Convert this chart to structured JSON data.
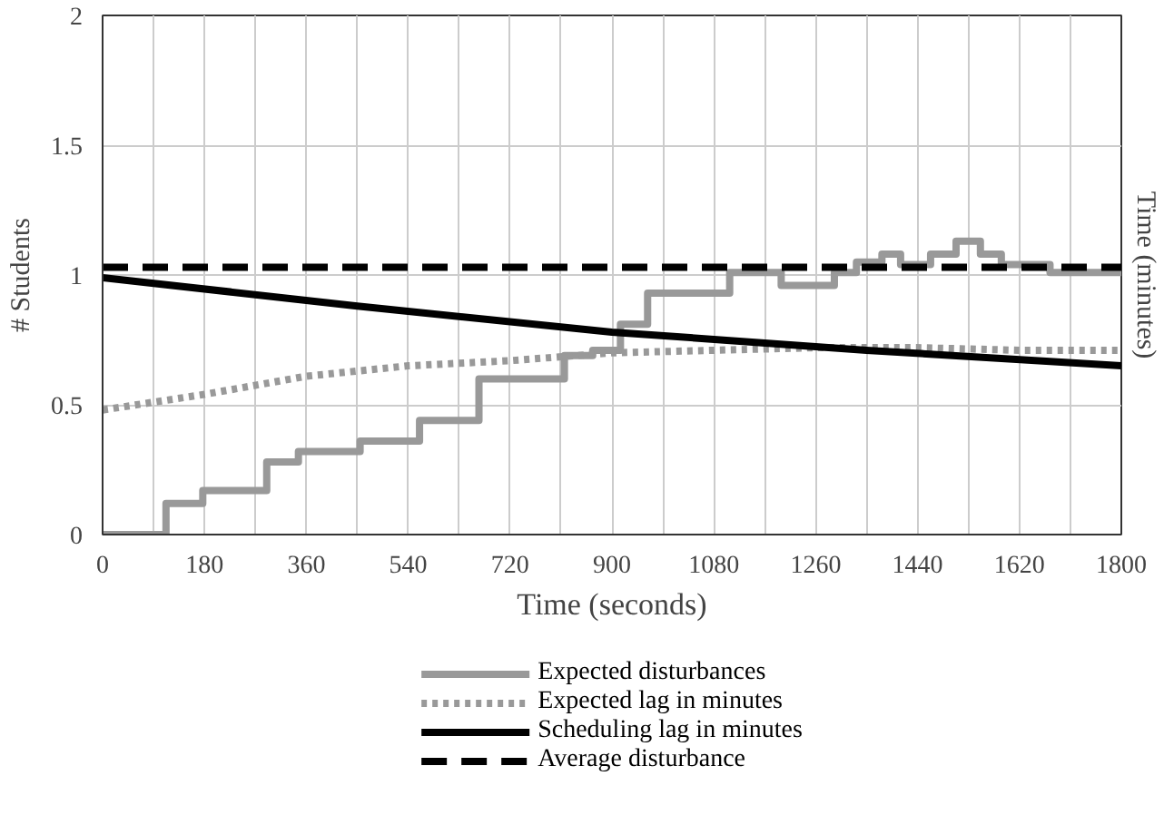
{
  "chart_data": {
    "type": "line",
    "xlabel": "Time (seconds)",
    "ylabel": "# Students",
    "y2label": "Time (minutes)",
    "xlim": [
      0,
      1800
    ],
    "ylim": [
      0,
      2
    ],
    "xticks": [
      0,
      {
        "value": 90,
        "label": null
      },
      180,
      {
        "value": 270,
        "label": null
      },
      360,
      {
        "value": 450,
        "label": null
      },
      540,
      {
        "value": 630,
        "label": null
      },
      720,
      {
        "value": 810,
        "label": null
      },
      900,
      {
        "value": 990,
        "label": null
      },
      1080,
      {
        "value": 1170,
        "label": null
      },
      1260,
      {
        "value": 1350,
        "label": null
      },
      1440,
      {
        "value": 1530,
        "label": null
      },
      1620,
      {
        "value": 1710,
        "label": null
      },
      1800
    ],
    "yticks": [
      0,
      0.5,
      1,
      1.5,
      2
    ],
    "grid": true,
    "legend": "bottom",
    "marker": "none",
    "series": [
      {
        "name": "Expected disturbances",
        "type": "step",
        "color": "#999999",
        "line_style": "solid",
        "x": [
          0,
          112,
          177,
          290,
          346,
          455,
          560,
          665,
          816,
          866,
          915,
          963,
          1108,
          1199,
          1293,
          1332,
          1377,
          1410,
          1463,
          1508,
          1551,
          1588,
          1674,
          1800
        ],
        "values": [
          0,
          0.12,
          0.17,
          0.28,
          0.32,
          0.36,
          0.44,
          0.6,
          0.69,
          0.71,
          0.81,
          0.93,
          1.01,
          0.96,
          1.01,
          1.05,
          1.08,
          1.04,
          1.08,
          1.13,
          1.08,
          1.04,
          1.01,
          1.01
        ]
      },
      {
        "name": "Expected lag in minutes",
        "color": "#999999",
        "line_style": "dotted",
        "x": [
          0,
          180,
          360,
          540,
          720,
          900,
          1080,
          1260,
          1440,
          1620,
          1800
        ],
        "values": [
          0.48,
          0.54,
          0.61,
          0.65,
          0.67,
          0.7,
          0.71,
          0.72,
          0.72,
          0.71,
          0.71
        ]
      },
      {
        "name": "Scheduling lag in minutes",
        "color": "#000000",
        "line_style": "solid",
        "x": [
          0,
          450,
          900,
          1350,
          1800
        ],
        "values": [
          0.99,
          0.88,
          0.78,
          0.71,
          0.65
        ]
      },
      {
        "name": "Average disturbance",
        "color": "#000000",
        "line_style": "dashed",
        "x": [
          0,
          1800
        ],
        "values": [
          1.03,
          1.03
        ]
      }
    ]
  }
}
